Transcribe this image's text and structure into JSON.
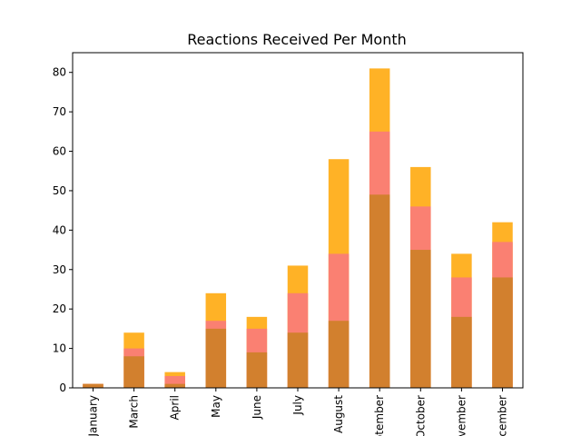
{
  "chart_data": {
    "type": "bar",
    "title": "Reactions Received Per Month",
    "xlabel": "",
    "ylabel": "",
    "categories": [
      "January",
      "March",
      "April",
      "May",
      "June",
      "July",
      "August",
      "September",
      "October",
      "November",
      "December"
    ],
    "ylim": [
      0,
      85
    ],
    "yticks": [
      0,
      10,
      20,
      30,
      40,
      50,
      60,
      70,
      80
    ],
    "grid": false,
    "series": [
      {
        "color": "#ffa500",
        "alpha": 0.85,
        "values": [
          1,
          14,
          4,
          24,
          18,
          31,
          58,
          81,
          56,
          34,
          42
        ]
      },
      {
        "color": "#fa8072",
        "alpha": 1.0,
        "values": [
          1,
          10,
          3,
          17,
          15,
          24,
          34,
          65,
          46,
          28,
          37
        ]
      },
      {
        "color": "#d2802e",
        "alpha": 1.0,
        "values": [
          1,
          8,
          1,
          15,
          9,
          14,
          17,
          49,
          35,
          18,
          28
        ]
      }
    ]
  }
}
